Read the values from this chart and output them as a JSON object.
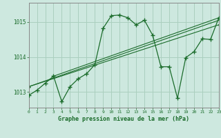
{
  "bg_color": "#cde8df",
  "grid_color": "#aacfbf",
  "line_color": "#1a6b2a",
  "text_color": "#1a6b2a",
  "xlim": [
    0,
    23
  ],
  "ylim": [
    1012.55,
    1015.55
  ],
  "yticks": [
    1013,
    1014,
    1015
  ],
  "xticks": [
    0,
    1,
    2,
    3,
    4,
    5,
    6,
    7,
    8,
    9,
    10,
    11,
    12,
    13,
    14,
    15,
    16,
    17,
    18,
    19,
    20,
    21,
    22,
    23
  ],
  "xlabel": "Graphe pression niveau de la mer (hPa)",
  "lines": [
    {
      "x": [
        0,
        1,
        2,
        3,
        4,
        5,
        6,
        7,
        8,
        9,
        10,
        11,
        12,
        13,
        14,
        15,
        16,
        17,
        18,
        19,
        20,
        21,
        22,
        23
      ],
      "y": [
        1012.9,
        1013.05,
        1013.25,
        1013.45,
        1012.72,
        1013.15,
        1013.38,
        1013.52,
        1013.78,
        1014.82,
        1015.18,
        1015.2,
        1015.12,
        1014.92,
        1015.05,
        1014.62,
        1013.72,
        1013.72,
        1012.82,
        1013.98,
        1014.15,
        1014.52,
        1014.5,
        1015.12
      ]
    },
    {
      "x": [
        0,
        23
      ],
      "y": [
        1013.15,
        1014.92
      ]
    },
    {
      "x": [
        0,
        23
      ],
      "y": [
        1013.15,
        1015.05
      ]
    },
    {
      "x": [
        3,
        23
      ],
      "y": [
        1013.45,
        1015.12
      ]
    }
  ]
}
